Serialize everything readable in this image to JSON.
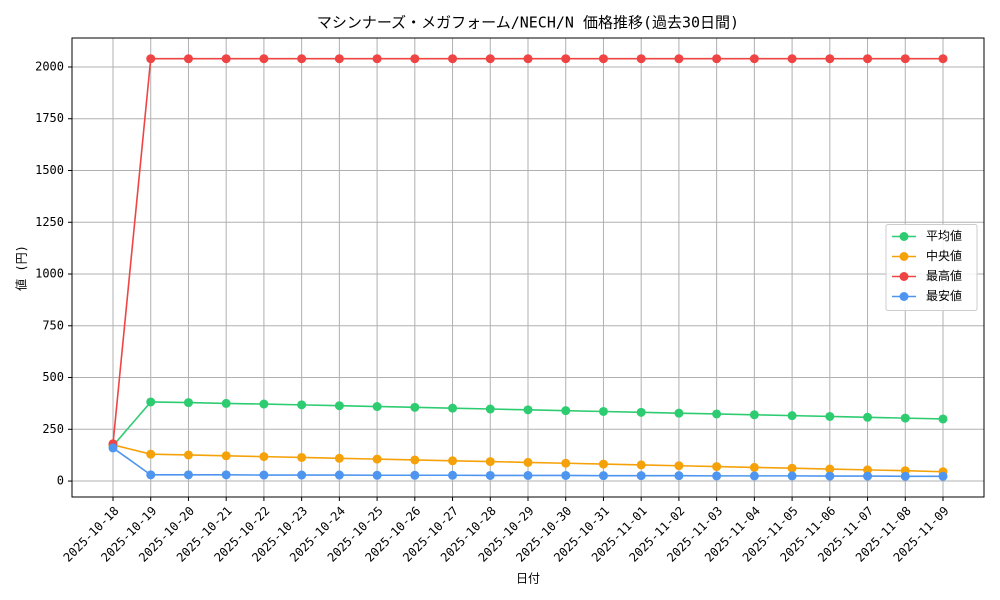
{
  "chart_data": {
    "type": "line",
    "title": "マシンナーズ・メガフォーム/NECH/N 価格推移(過去30日間)",
    "x_label": "日付",
    "y_label": "値 (円)",
    "categories": [
      "2025-10-18",
      "2025-10-19",
      "2025-10-20",
      "2025-10-21",
      "2025-10-22",
      "2025-10-23",
      "2025-10-24",
      "2025-10-25",
      "2025-10-26",
      "2025-10-27",
      "2025-10-28",
      "2025-10-29",
      "2025-10-30",
      "2025-10-31",
      "2025-11-01",
      "2025-11-02",
      "2025-11-03",
      "2025-11-04",
      "2025-11-05",
      "2025-11-06",
      "2025-11-07",
      "2025-11-08",
      "2025-11-09"
    ],
    "series": [
      {
        "name": "平均値",
        "color": "#2ecc71",
        "values": [
          170,
          382,
          379,
          375,
          372,
          368,
          364,
          360,
          356,
          352,
          348,
          344,
          340,
          336,
          332,
          328,
          324,
          320,
          316,
          312,
          308,
          304,
          300
        ]
      },
      {
        "name": "中央値",
        "color": "#f5a20a",
        "values": [
          175,
          130,
          126,
          122,
          118,
          114,
          110,
          106,
          102,
          98,
          94,
          90,
          86,
          82,
          78,
          74,
          70,
          66,
          62,
          58,
          54,
          50,
          45
        ]
      },
      {
        "name": "最高値",
        "color": "#ef4444",
        "values": [
          180,
          2040,
          2040,
          2040,
          2040,
          2040,
          2040,
          2040,
          2040,
          2040,
          2040,
          2040,
          2040,
          2040,
          2040,
          2040,
          2040,
          2040,
          2040,
          2040,
          2040,
          2040,
          2040
        ]
      },
      {
        "name": "最安値",
        "color": "#4e95f0",
        "values": [
          160,
          30,
          30,
          30,
          29,
          29,
          29,
          28,
          28,
          28,
          27,
          27,
          27,
          26,
          26,
          26,
          25,
          25,
          25,
          24,
          24,
          23,
          23
        ]
      }
    ],
    "ylim": [
      -77,
      2140
    ],
    "yticks": [
      0,
      250,
      500,
      750,
      1000,
      1250,
      1500,
      1750,
      2000
    ],
    "grid": true,
    "legend_loc": "center right"
  }
}
